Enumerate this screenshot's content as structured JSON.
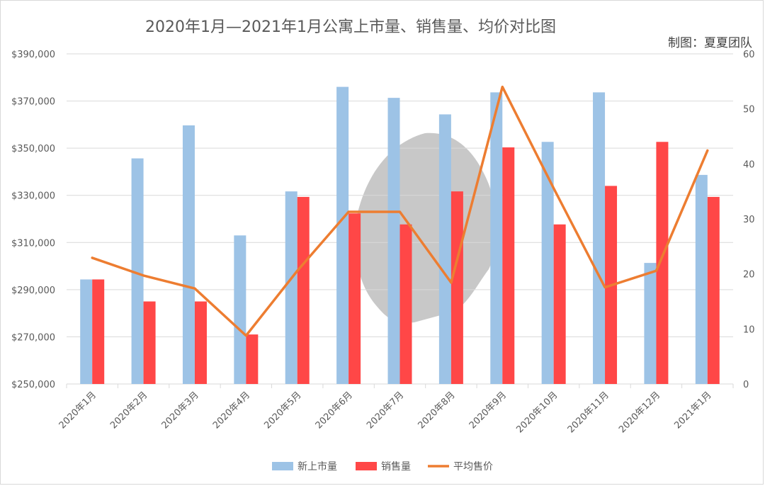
{
  "title": "2020年1月—2021年1月公寓上市量、销售量、均价对比图",
  "credit": "制图：夏夏团队",
  "colors": {
    "new_listings": "#9dc3e6",
    "sales": "#ff4747",
    "avg_price": "#ed7d31",
    "grid": "#d9d9d9"
  },
  "chart_data": {
    "type": "bar",
    "title": "2020年1月—2021年1月公寓上市量、销售量、均价对比图",
    "categories": [
      "2020年1月",
      "2020年2月",
      "2020年3月",
      "2020年4月",
      "2020年5月",
      "2020年6月",
      "2020年7月",
      "2020年8月",
      "2020年9月",
      "2020年10月",
      "2020年11月",
      "2020年12月",
      "2021年1月"
    ],
    "series": [
      {
        "name": "新上市量",
        "type": "bar",
        "axis": "right",
        "values": [
          19,
          41,
          47,
          27,
          35,
          54,
          52,
          49,
          53,
          44,
          53,
          22,
          38
        ]
      },
      {
        "name": "销售量",
        "type": "bar",
        "axis": "right",
        "values": [
          19,
          15,
          15,
          9,
          34,
          31,
          29,
          35,
          43,
          29,
          36,
          44,
          34
        ]
      },
      {
        "name": "平均售价",
        "type": "line",
        "axis": "left",
        "values": [
          303500,
          296000,
          290500,
          270500,
          298000,
          323000,
          323000,
          293000,
          376000,
          333000,
          291000,
          298000,
          349000
        ]
      }
    ],
    "y_left": {
      "min": 250000,
      "max": 390000,
      "step": 20000,
      "ticks": [
        "$250,000",
        "$270,000",
        "$290,000",
        "$310,000",
        "$330,000",
        "$350,000",
        "$370,000",
        "$390,000"
      ]
    },
    "y_right": {
      "min": 0,
      "max": 60,
      "step": 10,
      "ticks": [
        "0",
        "10",
        "20",
        "30",
        "40",
        "50",
        "60"
      ]
    },
    "grid": true,
    "legend_position": "bottom"
  }
}
